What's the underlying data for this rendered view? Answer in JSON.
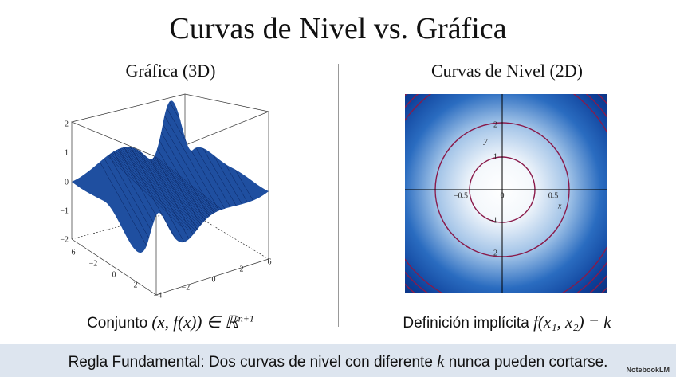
{
  "title": "Curvas de Nivel vs. Gráfica",
  "left": {
    "heading": "Gráfica (3D)",
    "z_ticks": [
      "2",
      "1",
      "0",
      "−1",
      "−2"
    ],
    "left_edge_ticks": [
      "6",
      "−2",
      "0",
      "2",
      "−4"
    ],
    "right_edge_ticks": [
      "−2",
      "0",
      "2",
      "6"
    ],
    "caption": {
      "text": "Conjunto",
      "math": "(x, f(x)) ∈ ℝ",
      "sup": "n+1"
    }
  },
  "right": {
    "heading": "Curvas de Nivel (2D)",
    "y_ticks": [
      "2",
      "1",
      "−1",
      "−2"
    ],
    "x_ticks": [
      "−0.5",
      "0",
      "0.5"
    ],
    "y_label": "y",
    "x_label": "x",
    "caption": {
      "text": "Definición implícita",
      "math": "f(x₁, x₂) = k"
    }
  },
  "footer": {
    "before": "Regla Fundamental: Dos curvas de nivel con diferente",
    "k": "k",
    "after": "nunca pueden cortarse."
  },
  "badge": "NotebookLM"
}
